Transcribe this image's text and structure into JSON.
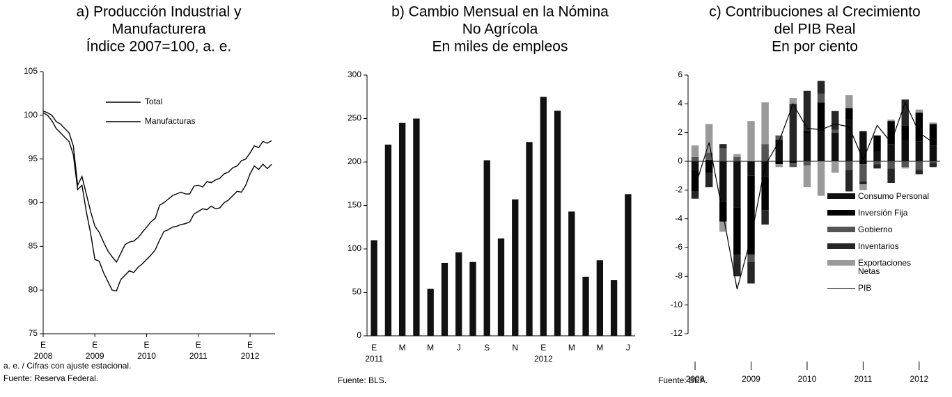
{
  "chart_data": [
    {
      "type": "line",
      "title": [
        "a) Producción Industrial y",
        "Manufacturera"
      ],
      "subtitle": "Índice 2007=100, a. e.",
      "x": [
        "2008-01",
        "2008-02",
        "2008-03",
        "2008-04",
        "2008-05",
        "2008-06",
        "2008-07",
        "2008-08",
        "2008-09",
        "2008-10",
        "2008-11",
        "2008-12",
        "2009-01",
        "2009-02",
        "2009-03",
        "2009-04",
        "2009-05",
        "2009-06",
        "2009-07",
        "2009-08",
        "2009-09",
        "2009-10",
        "2009-11",
        "2009-12",
        "2010-01",
        "2010-02",
        "2010-03",
        "2010-04",
        "2010-05",
        "2010-06",
        "2010-07",
        "2010-08",
        "2010-09",
        "2010-10",
        "2010-11",
        "2010-12",
        "2011-01",
        "2011-02",
        "2011-03",
        "2011-04",
        "2011-05",
        "2011-06",
        "2011-07",
        "2011-08",
        "2011-09",
        "2011-10",
        "2011-11",
        "2011-12",
        "2012-01",
        "2012-02",
        "2012-03",
        "2012-04",
        "2012-05",
        "2012-06"
      ],
      "series": [
        {
          "name": "Total",
          "color": "#000000",
          "values": [
            100.5,
            100.3,
            100,
            99.3,
            99,
            98.5,
            98,
            96.5,
            92,
            93,
            91,
            89,
            87.3,
            86.6,
            85.5,
            84.5,
            83.8,
            83.2,
            84.2,
            85.2,
            85.5,
            85.6,
            86,
            86.6,
            87.2,
            87.8,
            88.2,
            89.7,
            90,
            90.4,
            90.8,
            91,
            91.2,
            91,
            91,
            91.9,
            92,
            91.8,
            92.4,
            92.3,
            92.6,
            92.8,
            93.3,
            93.5,
            94,
            94.2,
            94.8,
            95,
            95.7,
            96.5,
            96.3,
            97,
            96.8,
            97.1
          ]
        },
        {
          "name": "Manufacturas",
          "color": "#000000",
          "values": [
            100.3,
            100,
            99.4,
            98.5,
            98,
            97.5,
            97,
            95.5,
            91.5,
            92,
            89,
            86.5,
            83.5,
            83.3,
            82,
            81,
            80,
            79.9,
            81.2,
            81.7,
            82.2,
            82,
            82.6,
            83,
            83.5,
            84,
            84.6,
            85.7,
            86.7,
            86.9,
            87.2,
            87.3,
            87.5,
            87.6,
            87.8,
            88.7,
            89,
            89.3,
            89.2,
            89.6,
            89.3,
            89.4,
            90,
            90.3,
            90.8,
            91.3,
            91.2,
            92,
            93.3,
            94.2,
            93.8,
            94.4,
            93.9,
            94.4
          ]
        }
      ],
      "ylim": [
        75,
        105
      ],
      "yticks": [
        75,
        80,
        85,
        90,
        95,
        100,
        105
      ],
      "xticks": [
        {
          "value": "2008-01",
          "label": [
            "E",
            "2008"
          ]
        },
        {
          "value": "2009-01",
          "label": [
            "E",
            "2009"
          ]
        },
        {
          "value": "2010-01",
          "label": [
            "E",
            "2010"
          ]
        },
        {
          "value": "2011-01",
          "label": [
            "E",
            "2011"
          ]
        },
        {
          "value": "2012-01",
          "label": [
            "E",
            "2012"
          ]
        }
      ],
      "legend": "upper center",
      "notes": [
        "a. e. / Cifras con ajuste estacional.",
        "Fuente: Reserva Federal."
      ]
    },
    {
      "type": "bar",
      "title": [
        "b) Cambio Mensual en la Nómina",
        "No Agrícola"
      ],
      "subtitle": "En miles de empleos",
      "categories": [
        "E",
        null,
        "M",
        null,
        "M",
        null,
        "J",
        null,
        "S",
        null,
        "N",
        null,
        "E",
        null,
        "M",
        null,
        "M",
        null,
        "J"
      ],
      "years": [
        "2011",
        null,
        null,
        null,
        null,
        null,
        null,
        null,
        null,
        null,
        null,
        null,
        "2012",
        null,
        null,
        null,
        null,
        null,
        null
      ],
      "values": [
        110,
        220,
        245,
        250,
        54,
        84,
        96,
        85,
        202,
        112,
        157,
        223,
        275,
        259,
        143,
        68,
        87,
        64,
        163
      ],
      "color": "#111111",
      "ylim": [
        0,
        300
      ],
      "yticks": [
        0,
        50,
        100,
        150,
        200,
        250,
        300
      ],
      "notes": [
        "Fuente: BLS."
      ]
    },
    {
      "type": "stacked_bar",
      "title": [
        "c) Contribuciones al Crecimiento",
        "del PIB Real"
      ],
      "subtitle": "En por ciento",
      "categories": [
        "2008",
        null,
        null,
        null,
        "2009",
        null,
        null,
        null,
        "2010",
        null,
        null,
        null,
        "2011",
        null,
        null,
        null,
        "2012",
        null
      ],
      "series": [
        {
          "name": "Consumo Personal",
          "color": "#111111",
          "values": [
            -0.6,
            0.1,
            -2.8,
            -3.2,
            -1.0,
            -1.1,
            1.5,
            0.0,
            1.9,
            2.1,
            2.0,
            2.9,
            2.1,
            0.7,
            1.2,
            1.5,
            1.4,
            1.1
          ]
        },
        {
          "name": "Inversión Fija",
          "color": "#000000",
          "values": [
            -1.5,
            -0.8,
            -1.4,
            -3.3,
            -5.5,
            -2.3,
            -0.2,
            -0.1,
            0.2,
            2.0,
            0.0,
            0.8,
            -0.2,
            1.1,
            1.6,
            1.0,
            2.0,
            1.5
          ]
        },
        {
          "name": "Gobierno",
          "color": "#555555",
          "values": [
            0.3,
            0.5,
            0.9,
            0.3,
            -0.5,
            1.2,
            0.3,
            -0.3,
            -0.3,
            0.6,
            0.2,
            -0.6,
            -1.2,
            -0.2,
            -0.5,
            -0.4,
            -0.6,
            -0.1
          ]
        },
        {
          "name": "Inventarios",
          "color": "#262626",
          "values": [
            -0.5,
            -1.0,
            0.3,
            -1.5,
            -1.5,
            -1.0,
            0.0,
            4.0,
            2.8,
            0.9,
            1.3,
            -1.5,
            -0.2,
            -0.3,
            -1.0,
            1.8,
            -0.3,
            -0.3
          ]
        },
        {
          "name": "Exportaciones Netas",
          "color": "#9a9a9a",
          "values": [
            0.8,
            2.0,
            -0.7,
            0.2,
            2.8,
            2.9,
            -0.2,
            0.4,
            -1.5,
            -2.4,
            -0.8,
            0.9,
            -0.4,
            0.0,
            0.1,
            -0.1,
            0.2,
            0.1
          ]
        },
        {
          "name": "PIB",
          "type": "line",
          "color": "#000000",
          "values": [
            -1.8,
            1.3,
            -3.7,
            -8.9,
            -5.3,
            -0.3,
            1.4,
            4.0,
            2.3,
            2.2,
            2.6,
            2.4,
            0.1,
            2.5,
            1.3,
            4.1,
            2.0,
            1.3
          ]
        }
      ],
      "ylim": [
        -12,
        6
      ],
      "yticks": [
        -12,
        -10,
        -8,
        -6,
        -4,
        -2,
        0,
        2,
        4,
        6
      ],
      "legend": "lower right",
      "notes": [
        "Fuente: BEA."
      ]
    }
  ]
}
